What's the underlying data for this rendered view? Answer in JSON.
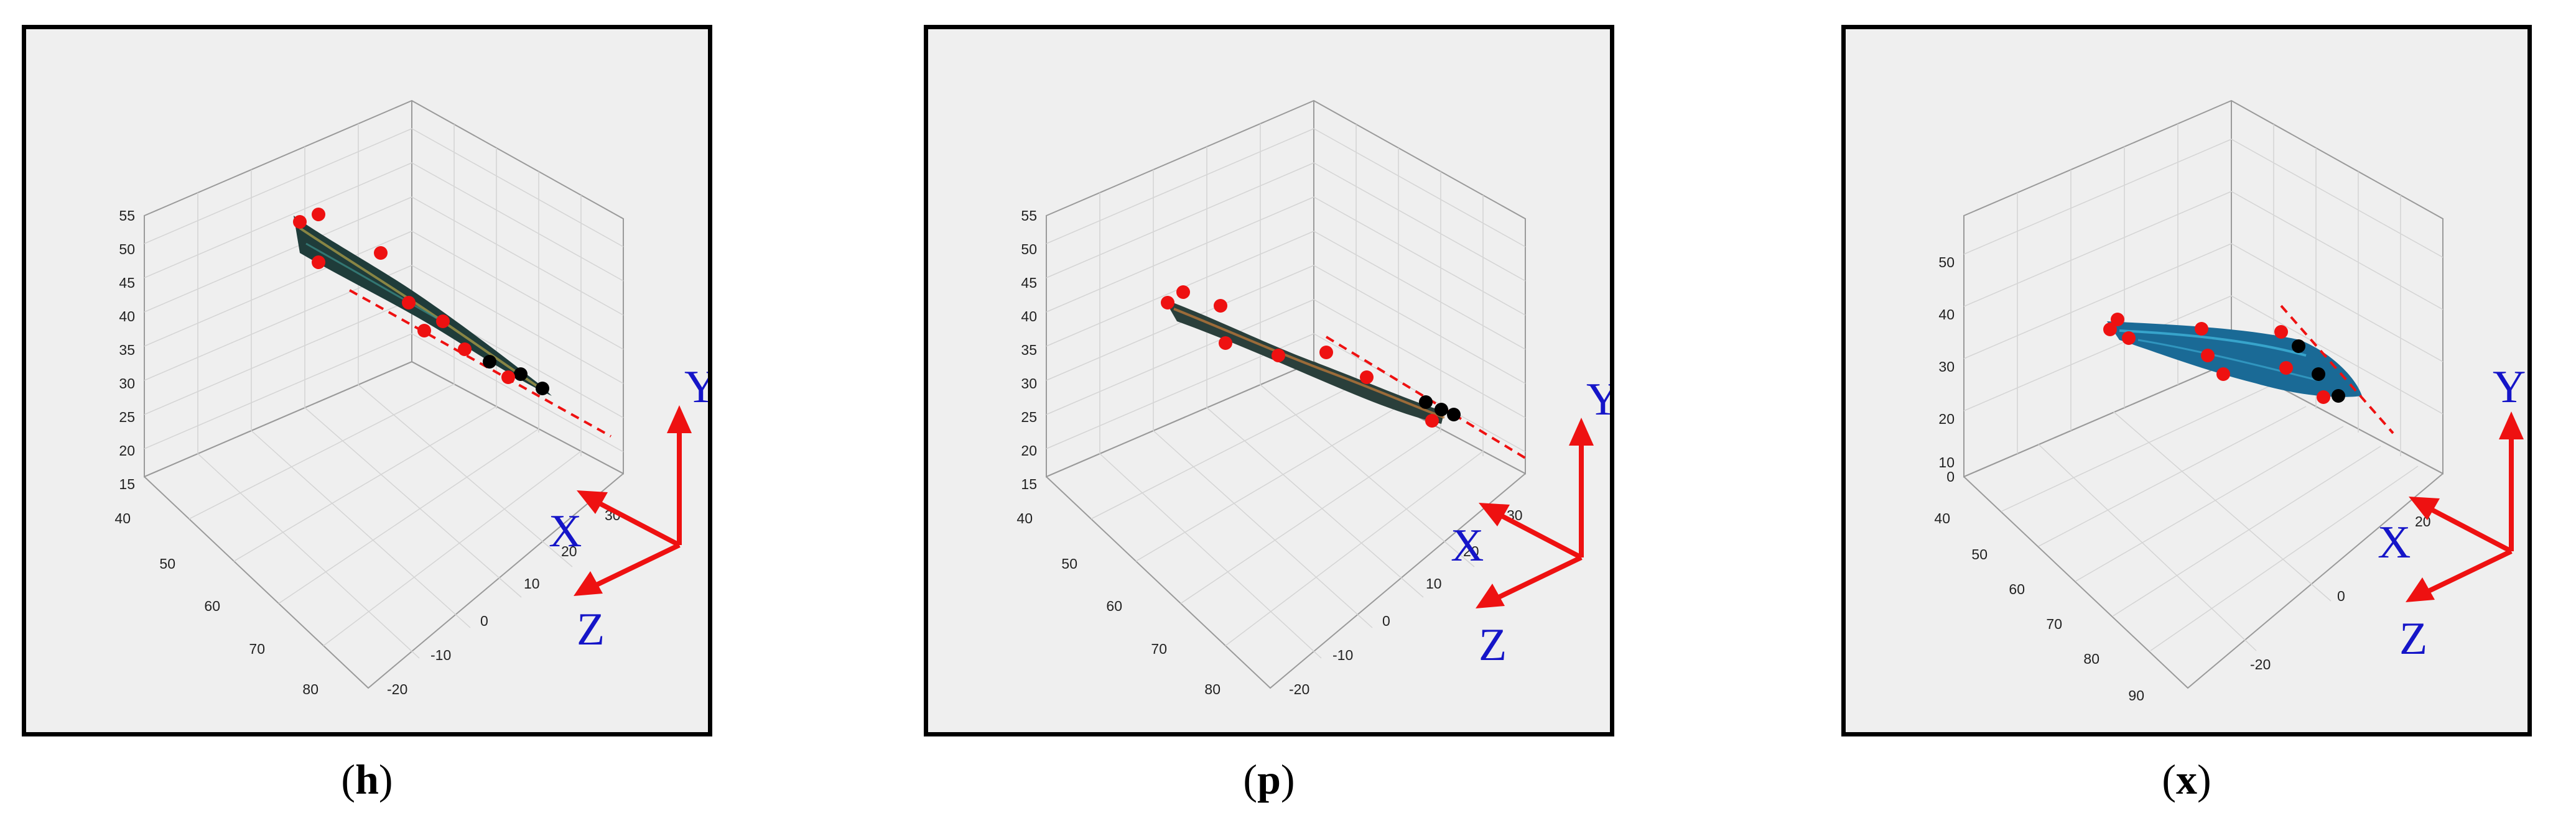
{
  "panels": [
    {
      "id": "h",
      "caption_open": "(",
      "caption_letter": "h",
      "caption_close": ")",
      "y_ticks": [
        "55",
        "50",
        "45",
        "40",
        "35",
        "30",
        "25",
        "20",
        "15"
      ],
      "depth_ticks": [
        "40",
        "50",
        "60",
        "70",
        "80"
      ],
      "x_ticks": [
        "30",
        "20",
        "10",
        "0",
        "-10",
        "-20"
      ],
      "axes": {
        "x": "X",
        "y": "Y",
        "z": "Z"
      },
      "surface_color": "#1f3c3a",
      "surface_accent": "#b5a448"
    },
    {
      "id": "p",
      "caption_open": "(",
      "caption_letter": "p",
      "caption_close": ")",
      "y_ticks": [
        "55",
        "50",
        "45",
        "40",
        "35",
        "30",
        "25",
        "20",
        "15"
      ],
      "depth_ticks": [
        "40",
        "50",
        "60",
        "70",
        "80"
      ],
      "x_ticks": [
        "30",
        "20",
        "10",
        "0",
        "-10",
        "-20"
      ],
      "axes": {
        "x": "X",
        "y": "Y",
        "z": "Z"
      },
      "surface_color": "#2a3f3b",
      "surface_accent": "#c27b3a"
    },
    {
      "id": "x",
      "caption_open": "(",
      "caption_letter": "x",
      "caption_close": ")",
      "y_ticks": [
        "50",
        "40",
        "30",
        "20",
        "10",
        "0"
      ],
      "depth_ticks": [
        "40",
        "50",
        "60",
        "70",
        "80",
        "90"
      ],
      "x_ticks": [
        "20",
        "0",
        "-20"
      ],
      "axes": {
        "x": "X",
        "y": "Y",
        "z": "Z"
      },
      "surface_color": "#1a6a96",
      "surface_accent": "#3fb3d8"
    }
  ],
  "colors": {
    "marker_red": "#ee1111",
    "marker_black": "#000000",
    "arrow_red": "#ee1111",
    "axis_label_blue": "#1515c8",
    "grid": "#c8c8c8"
  }
}
